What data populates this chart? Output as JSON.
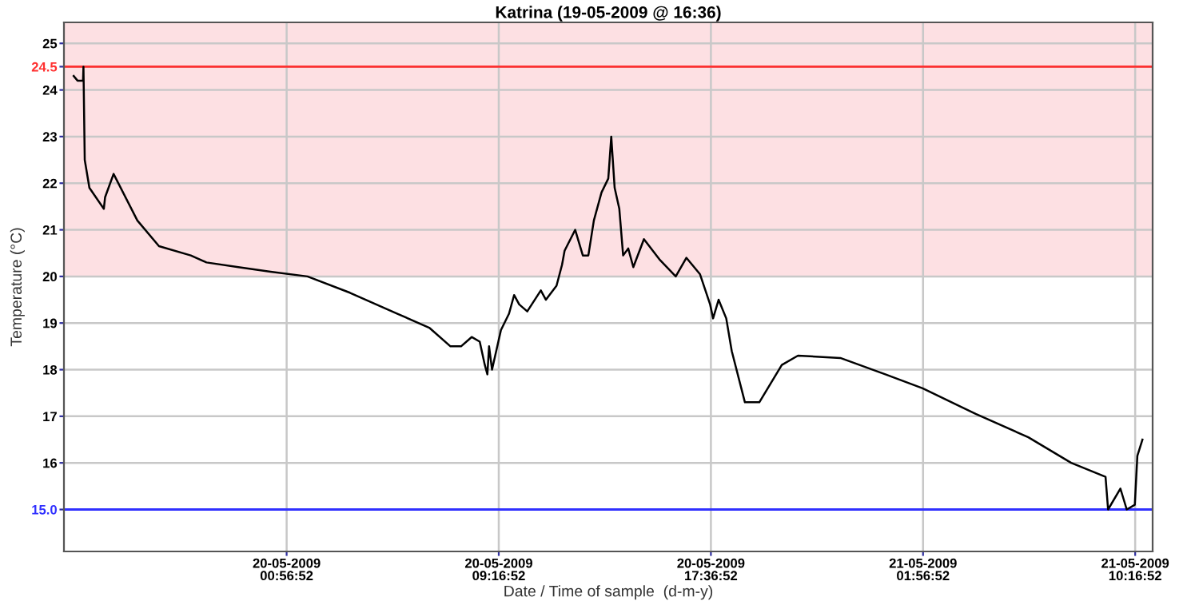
{
  "chart_data": {
    "type": "line",
    "title": "Katrina (19-05-2009 @ 16:36)",
    "xlabel": "Date / Time of sample  (d-m-y)",
    "ylabel": "Temperature (°C)",
    "series": [
      {
        "color": "#000000",
        "x": [
          "2009-05-19T16:35",
          "2009-05-19T16:44",
          "2009-05-19T16:57",
          "2009-05-19T16:58",
          "2009-05-19T17:01",
          "2009-05-19T17:12",
          "2009-05-19T17:46",
          "2009-05-19T17:49",
          "2009-05-19T18:09",
          "2009-05-19T19:05",
          "2009-05-19T19:56",
          "2009-05-19T21:11",
          "2009-05-19T21:48",
          "2009-05-19T23:03",
          "2009-05-20T00:19",
          "2009-05-20T01:46",
          "2009-05-20T03:26",
          "2009-05-20T05:18",
          "2009-05-20T06:33",
          "2009-05-20T07:23",
          "2009-05-20T07:48",
          "2009-05-20T08:13",
          "2009-05-20T08:32",
          "2009-05-20T08:44",
          "2009-05-20T08:50",
          "2009-05-20T08:54",
          "2009-05-20T09:01",
          "2009-05-20T09:22",
          "2009-05-20T09:41",
          "2009-05-20T09:53",
          "2009-05-20T10:05",
          "2009-05-20T10:24",
          "2009-05-20T10:56",
          "2009-05-20T11:08",
          "2009-05-20T11:33",
          "2009-05-20T11:46",
          "2009-05-20T11:52",
          "2009-05-20T12:17",
          "2009-05-20T12:35",
          "2009-05-20T12:48",
          "2009-05-20T13:01",
          "2009-05-20T13:19",
          "2009-05-20T13:35",
          "2009-05-20T13:42",
          "2009-05-20T13:50",
          "2009-05-20T14:01",
          "2009-05-20T14:10",
          "2009-05-20T14:22",
          "2009-05-20T14:34",
          "2009-05-20T14:59",
          "2009-05-20T15:37",
          "2009-05-20T16:14",
          "2009-05-20T16:39",
          "2009-05-20T17:11",
          "2009-05-20T17:35",
          "2009-05-20T17:42",
          "2009-05-20T17:55",
          "2009-05-20T18:13",
          "2009-05-20T18:26",
          "2009-05-20T18:57",
          "2009-05-20T19:31",
          "2009-05-20T20:24",
          "2009-05-20T21:02",
          "2009-05-20T22:42",
          "2009-05-21T00:28",
          "2009-05-21T01:56",
          "2009-05-21T04:01",
          "2009-05-21T06:05",
          "2009-05-21T07:46",
          "2009-05-21T09:07",
          "2009-05-21T09:13",
          "2009-05-21T09:42",
          "2009-05-21T09:57",
          "2009-05-21T10:16",
          "2009-05-21T10:22",
          "2009-05-21T10:34"
        ],
        "values": [
          24.3,
          24.2,
          24.2,
          24.5,
          22.5,
          21.9,
          21.45,
          21.7,
          22.2,
          21.2,
          20.65,
          20.45,
          20.3,
          20.2,
          20.1,
          20.0,
          19.65,
          19.2,
          18.9,
          18.5,
          18.5,
          18.7,
          18.6,
          18.1,
          17.9,
          18.5,
          18.0,
          18.85,
          19.2,
          19.6,
          19.4,
          19.25,
          19.7,
          19.5,
          19.8,
          20.25,
          20.55,
          21.0,
          20.45,
          20.45,
          21.2,
          21.8,
          22.1,
          23.0,
          21.9,
          21.45,
          20.45,
          20.6,
          20.2,
          20.8,
          20.35,
          20.0,
          20.4,
          20.05,
          19.4,
          19.1,
          19.5,
          19.1,
          18.4,
          17.3,
          17.3,
          18.1,
          18.3,
          18.25,
          17.9,
          17.6,
          17.05,
          16.55,
          16.0,
          15.7,
          15.0,
          15.45,
          15.0,
          15.1,
          16.15,
          16.5
        ]
      }
    ],
    "xlim": [
      "2009-05-19T16:12",
      "2009-05-21T10:58"
    ],
    "xticks": [
      {
        "value": "2009-05-20T00:56:52",
        "label": "20-05-2009\n00:56:52"
      },
      {
        "value": "2009-05-20T09:16:52",
        "label": "20-05-2009\n09:16:52"
      },
      {
        "value": "2009-05-20T17:36:52",
        "label": "20-05-2009\n17:36:52"
      },
      {
        "value": "2009-05-21T01:56:52",
        "label": "21-05-2009\n01:56:52"
      },
      {
        "value": "2009-05-21T10:16:52",
        "label": "21-05-2009\n10:16:52"
      }
    ],
    "ylim": [
      14.1,
      25.45
    ],
    "yticks": [
      {
        "value": 15,
        "label": "15.0"
      },
      16,
      17,
      18,
      19,
      20,
      21,
      22,
      23,
      24,
      {
        "value": 24.5,
        "label": "24.5"
      },
      25
    ],
    "ref_lines": [
      {
        "axis": "y",
        "value": 24.5,
        "color": "#ff3030"
      },
      {
        "axis": "y",
        "value": 15,
        "color": "#3030ff"
      }
    ],
    "bands": [
      {
        "axis": "y",
        "from": 20,
        "to": 25.45,
        "color": "#fde0e3"
      }
    ],
    "grid": true,
    "marker": "none",
    "line_style": "solid"
  }
}
